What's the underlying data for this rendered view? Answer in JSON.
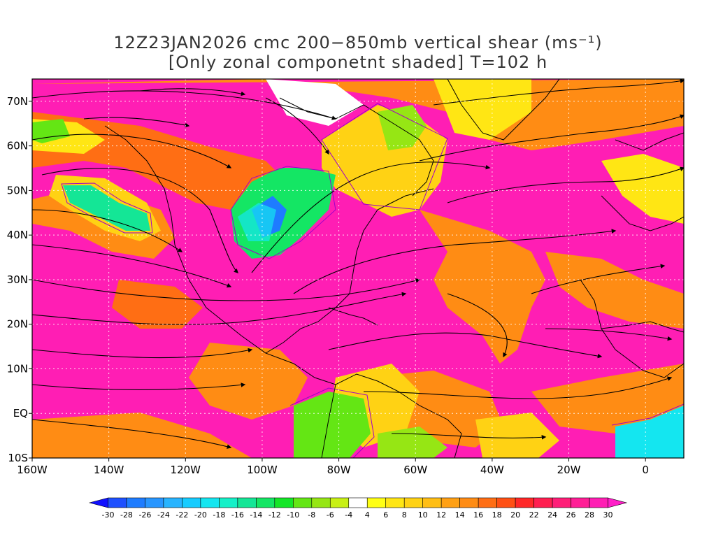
{
  "title": {
    "line1": "12Z23JAN2026 cmc 200−850mb vertical shear (ms⁻¹)",
    "line2": "[Only zonal componetnt shaded] T=102 h"
  },
  "axes": {
    "x_labels": [
      "160W",
      "140W",
      "120W",
      "100W",
      "80W",
      "60W",
      "40W",
      "20W",
      "0"
    ],
    "y_labels": [
      "70N",
      "60N",
      "50N",
      "40N",
      "30N",
      "20N",
      "10N",
      "EQ",
      "10S"
    ],
    "lon_range": [
      -160,
      10
    ],
    "lat_range": [
      -10,
      75
    ]
  },
  "colorbar": {
    "labels": [
      "-30",
      "-28",
      "-26",
      "-24",
      "-22",
      "-20",
      "-18",
      "-16",
      "-14",
      "-12",
      "-10",
      "-8",
      "-6",
      "-4",
      "4",
      "6",
      "8",
      "10",
      "12",
      "14",
      "16",
      "18",
      "20",
      "22",
      "24",
      "26",
      "28",
      "30"
    ],
    "colors": [
      "#1010ff",
      "#1e50ff",
      "#1e7cff",
      "#2896ff",
      "#28b4ff",
      "#16ccff",
      "#14e6f0",
      "#14f0c8",
      "#14e696",
      "#14e664",
      "#14e628",
      "#64e614",
      "#96e614",
      "#c8f014",
      "#ffffff",
      "#ffff14",
      "#ffe614",
      "#ffd214",
      "#ffbe14",
      "#ffa014",
      "#ff8c14",
      "#ff6e14",
      "#ff5014",
      "#ff2828",
      "#ff1e50",
      "#ff1e78",
      "#ff1e96",
      "#ff1eb4",
      "#ff1ec8"
    ]
  },
  "colors": {
    "high_shear": "#ff1eb4",
    "mid_shear": "#ff8c14",
    "low_positive": "#ffd214",
    "negative": "#14e664",
    "streamlines": "#000000",
    "coast": "#000000",
    "contour": "#a000c8"
  }
}
